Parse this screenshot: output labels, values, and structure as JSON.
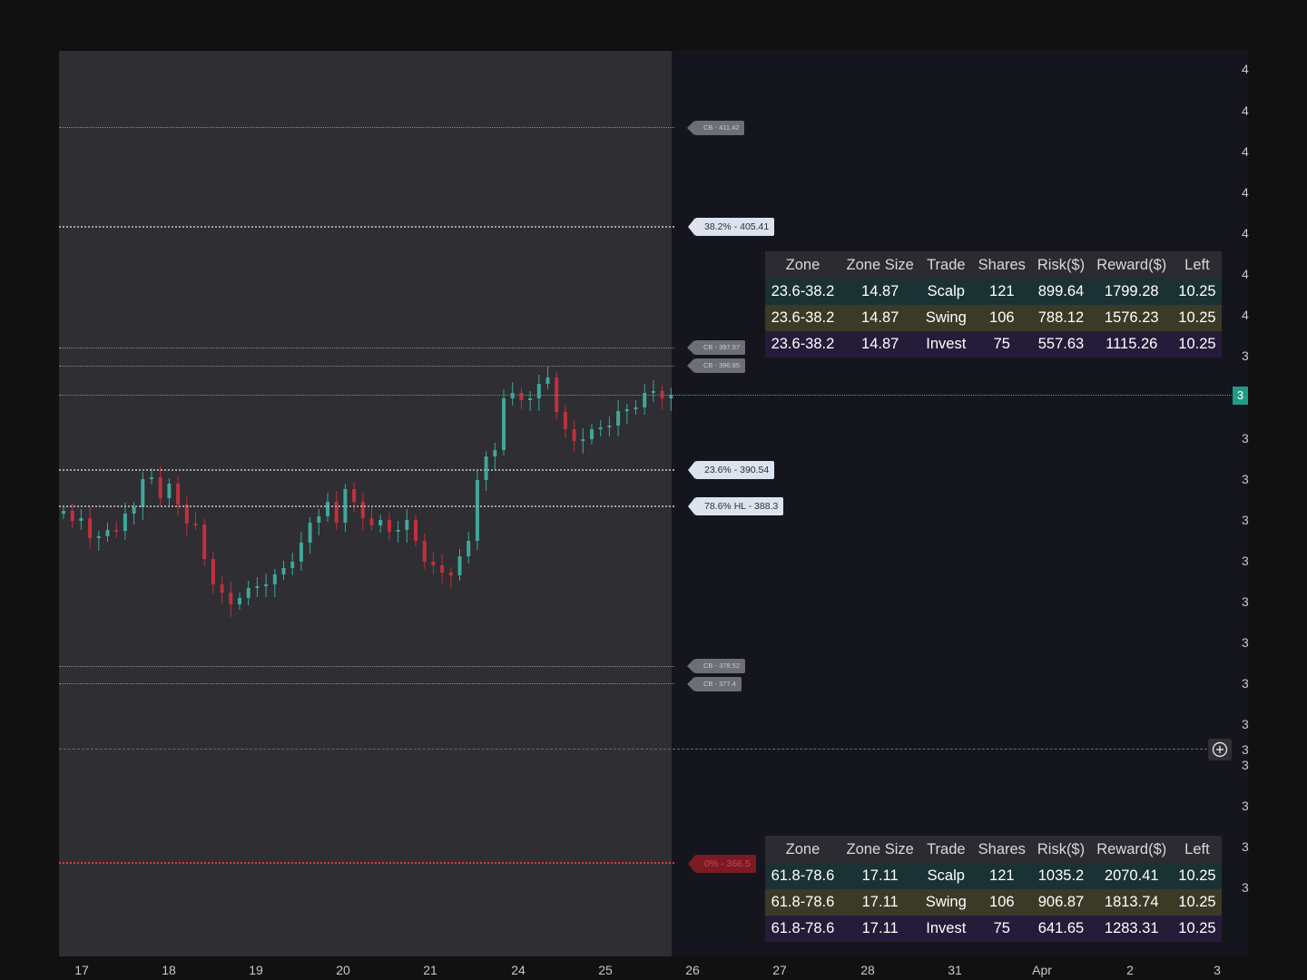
{
  "tags": {
    "cb1": "CB - 411.42",
    "fib382": "38.2% - 405.41",
    "cb2": "CB - 397.97",
    "cb3": "CB - 396.85",
    "fib236": "23.6% - 390.54",
    "fib786": "78.6% HL - 388.3",
    "cb4": "CB - 378.52",
    "cb5": "CB - 377.4",
    "fib0": "0% - 366.5"
  },
  "table_top": {
    "headers": [
      "Zone",
      "Zone Size",
      "Trade",
      "Shares",
      "Risk($)",
      "Reward($)",
      "Left"
    ],
    "rows": [
      [
        "23.6-38.2",
        "14.87",
        "Scalp",
        "121",
        "899.64",
        "1799.28",
        "10.25"
      ],
      [
        "23.6-38.2",
        "14.87",
        "Swing",
        "106",
        "788.12",
        "1576.23",
        "10.25"
      ],
      [
        "23.6-38.2",
        "14.87",
        "Invest",
        "75",
        "557.63",
        "1115.26",
        "10.25"
      ]
    ]
  },
  "table_bottom": {
    "headers": [
      "Zone",
      "Zone Size",
      "Trade",
      "Shares",
      "Risk($)",
      "Reward($)",
      "Left"
    ],
    "rows": [
      [
        "61.8-78.6",
        "17.11",
        "Scalp",
        "121",
        "1035.2",
        "2070.41",
        "10.25"
      ],
      [
        "61.8-78.6",
        "17.11",
        "Swing",
        "106",
        "906.87",
        "1813.74",
        "10.25"
      ],
      [
        "61.8-78.6",
        "17.11",
        "Invest",
        "75",
        "641.65",
        "1283.31",
        "10.25"
      ]
    ]
  },
  "price_axis": {
    "ticks": [
      "4",
      "4",
      "4",
      "4",
      "4",
      "4",
      "4",
      "3",
      "3",
      "3",
      "3",
      "3",
      "3",
      "3",
      "3",
      "3",
      "3",
      "3",
      "3",
      "3"
    ],
    "current_price_badge": "3",
    "crosshair_label": "3"
  },
  "time_axis": [
    "17",
    "18",
    "19",
    "20",
    "21",
    "24",
    "25",
    "26",
    "27",
    "28",
    "31",
    "Apr",
    "2",
    "3"
  ],
  "colors": {
    "up_candle": "#3fa79a",
    "down_candle": "#c0303e",
    "panel_bg": "#15151d",
    "session_bg": "#2e2e33",
    "accent": "#1f9c86"
  },
  "icons": {
    "crosshair_add": "plus-circle-icon"
  }
}
